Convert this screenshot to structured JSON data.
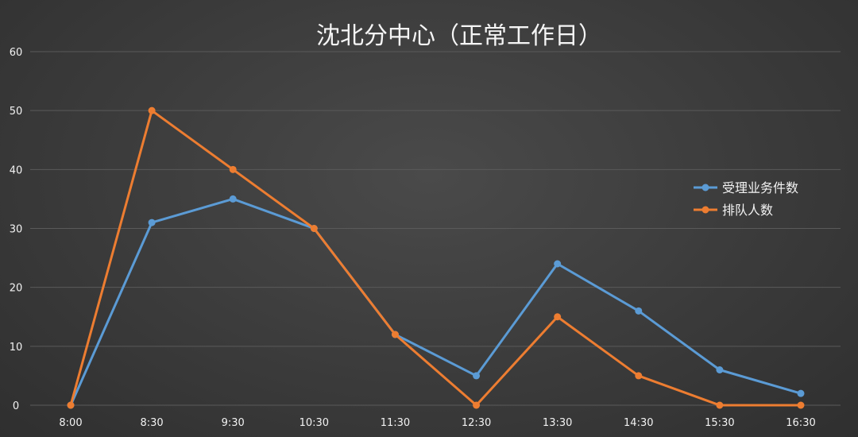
{
  "chart_data": {
    "type": "line",
    "title": "沈北分中心（正常工作日）",
    "xlabel": "",
    "ylabel": "",
    "categories": [
      "8:00",
      "8:30",
      "9:30",
      "10:30",
      "11:30",
      "12:30",
      "13:30",
      "14:30",
      "15:30",
      "16:30"
    ],
    "y_ticks": [
      "0",
      "10",
      "20",
      "30",
      "40",
      "50",
      "60"
    ],
    "ylim": [
      0,
      60
    ],
    "grid": true,
    "legend_position": "right",
    "series": [
      {
        "name": "受理业务件数",
        "color": "#5b9bd5",
        "values": [
          0,
          31,
          35,
          30,
          12,
          5,
          24,
          16,
          6,
          2
        ]
      },
      {
        "name": "排队人数",
        "color": "#ed7d31",
        "values": [
          0,
          50,
          40,
          30,
          12,
          0,
          15,
          5,
          0,
          0
        ]
      }
    ]
  }
}
